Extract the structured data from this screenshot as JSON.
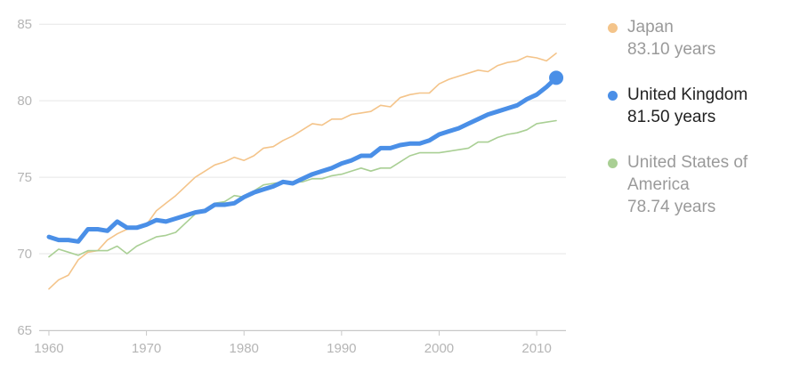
{
  "chart_data": {
    "type": "line",
    "xlabel": "",
    "ylabel": "",
    "xlim": [
      1959,
      2013
    ],
    "ylim": [
      65,
      86
    ],
    "x_ticks": [
      1960,
      1970,
      1980,
      1990,
      2000,
      2010
    ],
    "y_ticks": [
      65,
      70,
      75,
      80,
      85
    ],
    "grid": true,
    "legend_position": "right",
    "highlighted_series": "United Kingdom",
    "series": [
      {
        "name": "Japan",
        "label_value": "83.10 years",
        "color": "#f4c48a",
        "x": [
          1960,
          1961,
          1962,
          1963,
          1964,
          1965,
          1966,
          1967,
          1968,
          1969,
          1970,
          1971,
          1972,
          1973,
          1974,
          1975,
          1976,
          1977,
          1978,
          1979,
          1980,
          1981,
          1982,
          1983,
          1984,
          1985,
          1986,
          1987,
          1988,
          1989,
          1990,
          1991,
          1992,
          1993,
          1994,
          1995,
          1996,
          1997,
          1998,
          1999,
          2000,
          2001,
          2002,
          2003,
          2004,
          2005,
          2006,
          2007,
          2008,
          2009,
          2010,
          2011,
          2012
        ],
        "y": [
          67.7,
          68.3,
          68.6,
          69.6,
          70.1,
          70.2,
          70.9,
          71.3,
          71.6,
          71.8,
          71.9,
          72.8,
          73.3,
          73.8,
          74.4,
          75.0,
          75.4,
          75.8,
          76.0,
          76.3,
          76.1,
          76.4,
          76.9,
          77.0,
          77.4,
          77.7,
          78.1,
          78.5,
          78.4,
          78.8,
          78.8,
          79.1,
          79.2,
          79.3,
          79.7,
          79.6,
          80.2,
          80.4,
          80.5,
          80.5,
          81.1,
          81.4,
          81.6,
          81.8,
          82.0,
          81.9,
          82.3,
          82.5,
          82.6,
          82.9,
          82.8,
          82.6,
          83.1
        ]
      },
      {
        "name": "United Kingdom",
        "label_value": "81.50 years",
        "color": "#4a8fe7",
        "x": [
          1960,
          1961,
          1962,
          1963,
          1964,
          1965,
          1966,
          1967,
          1968,
          1969,
          1970,
          1971,
          1972,
          1973,
          1974,
          1975,
          1976,
          1977,
          1978,
          1979,
          1980,
          1981,
          1982,
          1983,
          1984,
          1985,
          1986,
          1987,
          1988,
          1989,
          1990,
          1991,
          1992,
          1993,
          1994,
          1995,
          1996,
          1997,
          1998,
          1999,
          2000,
          2001,
          2002,
          2003,
          2004,
          2005,
          2006,
          2007,
          2008,
          2009,
          2010,
          2011,
          2012
        ],
        "y": [
          71.1,
          70.9,
          70.9,
          70.8,
          71.6,
          71.6,
          71.5,
          72.1,
          71.7,
          71.7,
          71.9,
          72.2,
          72.1,
          72.3,
          72.5,
          72.7,
          72.8,
          73.2,
          73.2,
          73.3,
          73.7,
          74.0,
          74.2,
          74.4,
          74.7,
          74.6,
          74.9,
          75.2,
          75.4,
          75.6,
          75.9,
          76.1,
          76.4,
          76.4,
          76.9,
          76.9,
          77.1,
          77.2,
          77.2,
          77.4,
          77.8,
          78.0,
          78.2,
          78.5,
          78.8,
          79.1,
          79.3,
          79.5,
          79.7,
          80.1,
          80.4,
          80.9,
          81.5
        ]
      },
      {
        "name": "United States of America",
        "label_value": "78.74 years",
        "color": "#a9cf94",
        "x": [
          1960,
          1961,
          1962,
          1963,
          1964,
          1965,
          1966,
          1967,
          1968,
          1969,
          1970,
          1971,
          1972,
          1973,
          1974,
          1975,
          1976,
          1977,
          1978,
          1979,
          1980,
          1981,
          1982,
          1983,
          1984,
          1985,
          1986,
          1987,
          1988,
          1989,
          1990,
          1991,
          1992,
          1993,
          1994,
          1995,
          1996,
          1997,
          1998,
          1999,
          2000,
          2001,
          2002,
          2003,
          2004,
          2005,
          2006,
          2007,
          2008,
          2009,
          2010,
          2011,
          2012
        ],
        "y": [
          69.8,
          70.3,
          70.1,
          69.9,
          70.2,
          70.2,
          70.2,
          70.5,
          70.0,
          70.5,
          70.8,
          71.1,
          71.2,
          71.4,
          72.0,
          72.6,
          72.9,
          73.3,
          73.4,
          73.8,
          73.7,
          74.1,
          74.5,
          74.6,
          74.7,
          74.7,
          74.7,
          74.9,
          74.9,
          75.1,
          75.2,
          75.4,
          75.6,
          75.4,
          75.6,
          75.6,
          76.0,
          76.4,
          76.6,
          76.6,
          76.6,
          76.7,
          76.8,
          76.9,
          77.3,
          77.3,
          77.6,
          77.8,
          77.9,
          78.1,
          78.5,
          78.6,
          78.7
        ]
      }
    ]
  }
}
